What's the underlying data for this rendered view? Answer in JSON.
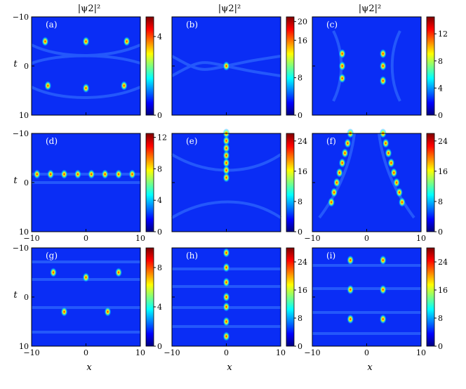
{
  "figure": {
    "column_titles": [
      "|ψ2|²",
      "|ψ2|²",
      "|ψ2|²"
    ],
    "xlabel": "x",
    "ylabel": "t",
    "colormap": [
      "#00007f",
      "#0000ff",
      "#007fff",
      "#00ffff",
      "#7fff7f",
      "#ffff00",
      "#ff7f00",
      "#ff0000",
      "#7f0000"
    ]
  },
  "chart_data": [
    {
      "type": "heatmap",
      "panel": "(a)",
      "pattern": "a",
      "xlim": [
        -10,
        10
      ],
      "ylim": [
        -10,
        10
      ],
      "xticks": [
        "",
        "",
        ""
      ],
      "yticks": [
        "−10",
        "0",
        "10"
      ],
      "colorbar_ticks": [
        "0",
        "4"
      ],
      "colorbar_range": [
        0,
        5
      ]
    },
    {
      "type": "heatmap",
      "panel": "(b)",
      "pattern": "b",
      "xlim": [
        -10,
        10
      ],
      "ylim": [
        -10,
        10
      ],
      "xticks": [
        "",
        "",
        ""
      ],
      "yticks": [
        "",
        "",
        ""
      ],
      "colorbar_ticks": [
        "0",
        "8",
        "16",
        "20"
      ],
      "colorbar_range": [
        0,
        21
      ]
    },
    {
      "type": "heatmap",
      "panel": "(c)",
      "pattern": "c",
      "xlim": [
        -10,
        10
      ],
      "ylim": [
        -10,
        10
      ],
      "xticks": [
        "",
        "",
        ""
      ],
      "yticks": [
        "",
        "",
        ""
      ],
      "colorbar_ticks": [
        "0",
        "4",
        "8",
        "12"
      ],
      "colorbar_range": [
        0,
        14.5
      ]
    },
    {
      "type": "heatmap",
      "panel": "(d)",
      "pattern": "d",
      "xlim": [
        -10,
        10
      ],
      "ylim": [
        -10,
        10
      ],
      "xticks": [
        "−10",
        "0",
        "10"
      ],
      "yticks": [
        "−10",
        "0",
        "10"
      ],
      "colorbar_ticks": [
        "0",
        "4",
        "8",
        "12"
      ],
      "colorbar_range": [
        0,
        12.5
      ]
    },
    {
      "type": "heatmap",
      "panel": "(e)",
      "pattern": "e",
      "xlim": [
        -10,
        10
      ],
      "ylim": [
        -10,
        10
      ],
      "xticks": [
        "",
        "",
        ""
      ],
      "yticks": [
        "",
        "",
        ""
      ],
      "colorbar_ticks": [
        "0",
        "8",
        "16",
        "24"
      ],
      "colorbar_range": [
        0,
        26
      ]
    },
    {
      "type": "heatmap",
      "panel": "(f)",
      "pattern": "f",
      "xlim": [
        -10,
        10
      ],
      "ylim": [
        -10,
        10
      ],
      "xticks": [
        "−10",
        "0",
        "10"
      ],
      "yticks": [
        "",
        "",
        ""
      ],
      "colorbar_ticks": [
        "0",
        "8",
        "16",
        "24"
      ],
      "colorbar_range": [
        0,
        26
      ]
    },
    {
      "type": "heatmap",
      "panel": "(g)",
      "pattern": "g",
      "xlim": [
        -10,
        10
      ],
      "ylim": [
        -10,
        10
      ],
      "xticks": [
        "−10",
        "0",
        "10"
      ],
      "yticks": [
        "−10",
        "0",
        "10"
      ],
      "colorbar_ticks": [
        "0",
        "4",
        "8"
      ],
      "colorbar_range": [
        0,
        10
      ]
    },
    {
      "type": "heatmap",
      "panel": "(h)",
      "pattern": "h",
      "xlim": [
        -10,
        10
      ],
      "ylim": [
        -10,
        10
      ],
      "xticks": [
        "−10",
        "0",
        "10"
      ],
      "yticks": [
        "",
        "",
        ""
      ],
      "colorbar_ticks": [
        "0",
        "8",
        "16",
        "24"
      ],
      "colorbar_range": [
        0,
        28
      ]
    },
    {
      "type": "heatmap",
      "panel": "(i)",
      "pattern": "i",
      "xlim": [
        -10,
        10
      ],
      "ylim": [
        -10,
        10
      ],
      "xticks": [
        "−10",
        "0",
        "10"
      ],
      "yticks": [
        "",
        "",
        ""
      ],
      "colorbar_ticks": [
        "0",
        "8",
        "16",
        "24"
      ],
      "colorbar_range": [
        0,
        28
      ]
    }
  ]
}
